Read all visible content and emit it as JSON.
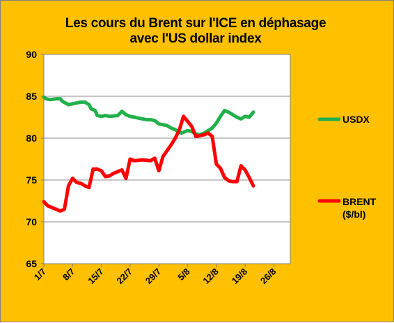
{
  "chart_data": {
    "type": "line",
    "title_line1": "Les cours du Brent sur l'ICE  en déphasage",
    "title_line2": "avec l'US dollar index",
    "xlabel": "",
    "ylabel": "",
    "ylim": [
      65,
      90
    ],
    "yticks": [
      "90",
      "85",
      "80",
      "75",
      "70",
      "65"
    ],
    "xlim": [
      0,
      60
    ],
    "xticks": [
      {
        "label": "1/7",
        "day": 0
      },
      {
        "label": "8/7",
        "day": 7
      },
      {
        "label": "15/7",
        "day": 14
      },
      {
        "label": "22/7",
        "day": 21
      },
      {
        "label": "29/7",
        "day": 28
      },
      {
        "label": "5/8",
        "day": 35
      },
      {
        "label": "12/8",
        "day": 42
      },
      {
        "label": "19/8",
        "day": 49
      },
      {
        "label": "26/8",
        "day": 56
      }
    ],
    "grid": "horizontal",
    "legend_position": "right",
    "series": [
      {
        "name": "USDX",
        "color": "#22b04b",
        "x": [
          0,
          0.5,
          1.5,
          3,
          4,
          4.5,
          6,
          7,
          8,
          9,
          10,
          11,
          11.5,
          12.5,
          13,
          14,
          15,
          16,
          18,
          19,
          20,
          20.5,
          21,
          22,
          23,
          24,
          25,
          26,
          27,
          28,
          29,
          30,
          31,
          32,
          33,
          33.5,
          34,
          35,
          36,
          37,
          38,
          39,
          40,
          41,
          42,
          43,
          44,
          45,
          46,
          47,
          48,
          49,
          50,
          51
        ],
        "values": [
          84.9,
          84.7,
          84.6,
          84.7,
          84.7,
          84.4,
          84.0,
          84.1,
          84.2,
          84.3,
          84.3,
          84.0,
          83.5,
          83.3,
          82.7,
          82.6,
          82.7,
          82.6,
          82.7,
          83.2,
          82.8,
          82.7,
          82.6,
          82.5,
          82.4,
          82.3,
          82.2,
          82.2,
          82.1,
          81.7,
          81.6,
          81.5,
          81.2,
          81.0,
          80.7,
          80.6,
          80.7,
          80.9,
          80.8,
          80.5,
          80.4,
          80.6,
          80.9,
          81.2,
          81.8,
          82.6,
          83.3,
          83.1,
          82.8,
          82.5,
          82.3,
          82.6,
          82.5,
          83.1
        ]
      },
      {
        "name": "BRENT ($/bl)",
        "color": "#ff0000",
        "x": [
          0,
          1,
          3,
          4,
          5,
          6,
          7,
          8,
          9,
          10,
          11,
          12,
          13,
          14,
          15,
          16,
          17,
          18,
          19,
          20,
          21,
          22,
          24,
          26,
          27,
          28,
          29,
          30,
          31,
          32,
          33,
          34,
          35,
          36,
          37,
          38,
          39,
          40,
          41,
          42,
          43,
          44,
          45,
          46,
          47,
          48,
          49,
          50,
          51
        ],
        "values": [
          72.4,
          71.9,
          71.5,
          71.3,
          71.5,
          74.3,
          75.2,
          74.7,
          74.6,
          74.3,
          74.1,
          76.3,
          76.3,
          76.1,
          75.4,
          75.5,
          75.8,
          76.0,
          76.2,
          75.2,
          77.5,
          77.3,
          77.4,
          77.3,
          77.6,
          76.1,
          77.8,
          78.5,
          79.2,
          80.0,
          81.0,
          82.6,
          82.0,
          81.4,
          80.2,
          80.3,
          80.4,
          80.6,
          80.2,
          76.9,
          76.4,
          75.3,
          74.9,
          74.8,
          74.8,
          76.7,
          76.2,
          75.3,
          74.3
        ]
      }
    ]
  }
}
